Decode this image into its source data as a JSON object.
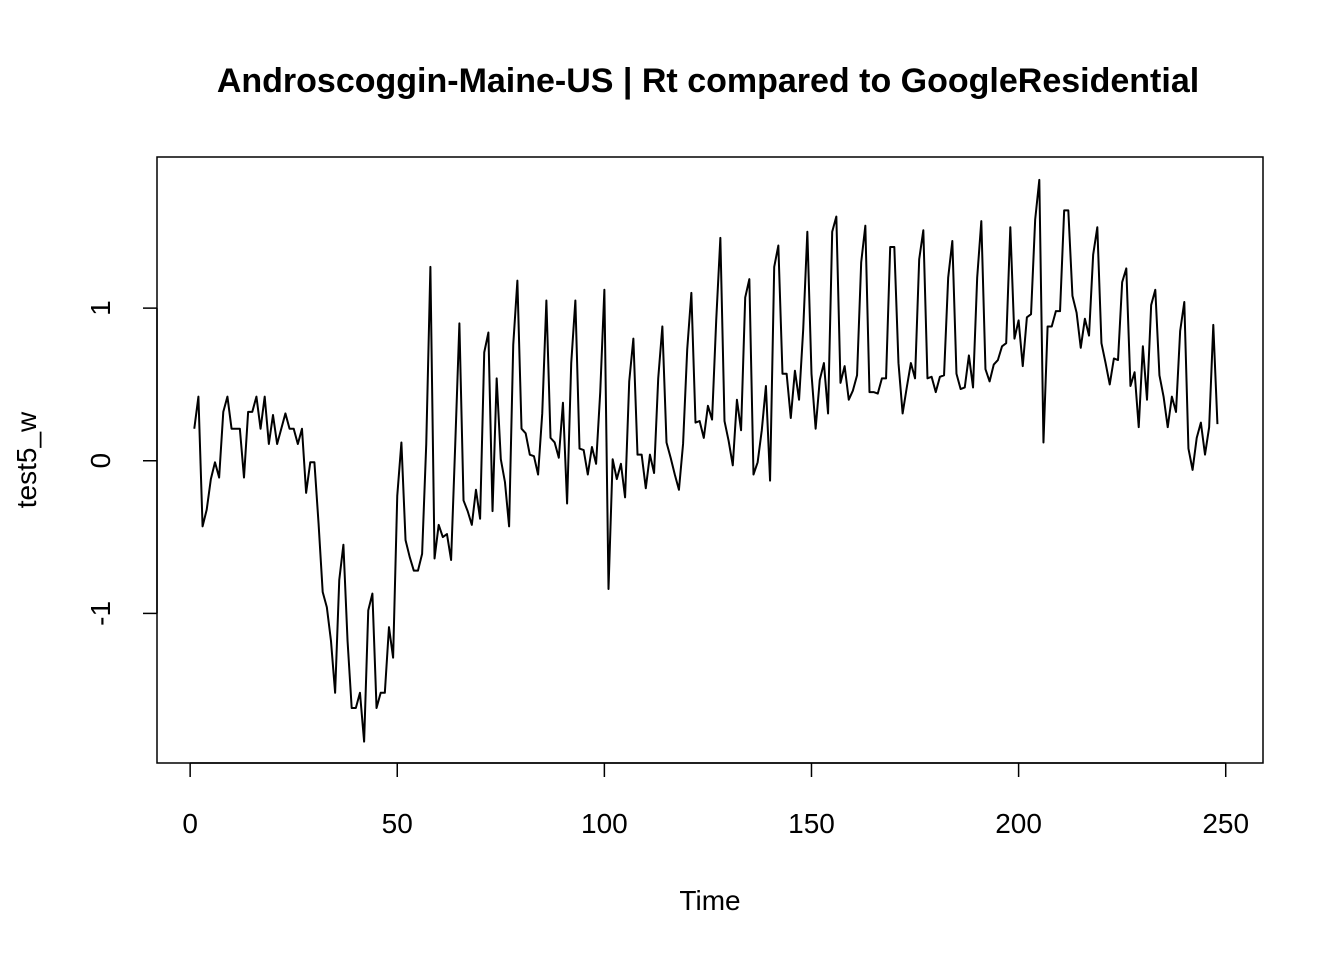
{
  "chart_data": {
    "type": "line",
    "title": "Androscoggin-Maine-US | Rt compared to GoogleResidential",
    "xlabel": "Time",
    "ylabel": "test5_w",
    "xlim": [
      -8,
      259
    ],
    "ylim": [
      -1.98,
      1.99
    ],
    "x_ticks": [
      0,
      50,
      100,
      150,
      200,
      250
    ],
    "x_tick_labels": [
      "0",
      "50",
      "100",
      "150",
      "200",
      "250"
    ],
    "y_ticks": [
      -1,
      0,
      1
    ],
    "y_tick_labels": [
      "-1",
      "0",
      "1"
    ],
    "grid": false,
    "legend": "none",
    "colors": {
      "line": "#000000",
      "frame": "#000000",
      "background": "#ffffff"
    },
    "x_start": 1,
    "values": [
      0.21,
      0.42,
      -0.43,
      -0.32,
      -0.12,
      -0.01,
      -0.11,
      0.32,
      0.42,
      0.21,
      0.21,
      0.21,
      -0.11,
      0.32,
      0.32,
      0.42,
      0.21,
      0.42,
      0.11,
      0.3,
      0.11,
      0.21,
      0.31,
      0.21,
      0.21,
      0.11,
      0.21,
      -0.21,
      -0.01,
      -0.01,
      -0.41,
      -0.86,
      -0.96,
      -1.18,
      -1.52,
      -0.78,
      -0.55,
      -1.18,
      -1.62,
      -1.62,
      -1.52,
      -1.84,
      -0.98,
      -0.87,
      -1.62,
      -1.52,
      -1.52,
      -1.09,
      -1.29,
      -0.23,
      0.12,
      -0.52,
      -0.63,
      -0.72,
      -0.72,
      -0.61,
      0.11,
      1.27,
      -0.64,
      -0.42,
      -0.5,
      -0.48,
      -0.65,
      0.11,
      0.9,
      -0.26,
      -0.33,
      -0.42,
      -0.19,
      -0.38,
      0.71,
      0.84,
      -0.33,
      0.54,
      0.01,
      -0.14,
      -0.43,
      0.76,
      1.18,
      0.21,
      0.18,
      0.04,
      0.03,
      -0.09,
      0.31,
      1.05,
      0.15,
      0.12,
      0.02,
      0.38,
      -0.28,
      0.64,
      1.05,
      0.08,
      0.07,
      -0.09,
      0.09,
      -0.02,
      0.45,
      1.12,
      -0.84,
      0.01,
      -0.12,
      -0.02,
      -0.24,
      0.52,
      0.8,
      0.04,
      0.04,
      -0.18,
      0.04,
      -0.08,
      0.54,
      0.88,
      0.12,
      0.02,
      -0.09,
      -0.19,
      0.11,
      0.73,
      1.1,
      0.25,
      0.26,
      0.15,
      0.36,
      0.27,
      0.92,
      1.46,
      0.26,
      0.13,
      -0.03,
      0.4,
      0.2,
      1.07,
      1.19,
      -0.09,
      -0.01,
      0.2,
      0.49,
      -0.13,
      1.27,
      1.41,
      0.57,
      0.57,
      0.28,
      0.59,
      0.4,
      0.86,
      1.5,
      0.57,
      0.21,
      0.53,
      0.64,
      0.31,
      1.5,
      1.6,
      0.51,
      0.62,
      0.4,
      0.46,
      0.56,
      1.3,
      1.54,
      0.45,
      0.45,
      0.44,
      0.54,
      0.54,
      1.4,
      1.4,
      0.64,
      0.31,
      0.48,
      0.64,
      0.54,
      1.32,
      1.51,
      0.54,
      0.55,
      0.45,
      0.55,
      0.56,
      1.2,
      1.44,
      0.57,
      0.47,
      0.48,
      0.69,
      0.48,
      1.2,
      1.57,
      0.6,
      0.52,
      0.63,
      0.66,
      0.75,
      0.77,
      1.53,
      0.8,
      0.92,
      0.62,
      0.94,
      0.96,
      1.58,
      1.84,
      0.12,
      0.88,
      0.88,
      0.98,
      0.98,
      1.64,
      1.64,
      1.08,
      0.97,
      0.74,
      0.93,
      0.82,
      1.35,
      1.53,
      0.77,
      0.64,
      0.5,
      0.67,
      0.66,
      1.17,
      1.26,
      0.49,
      0.58,
      0.22,
      0.75,
      0.4,
      1.02,
      1.12,
      0.56,
      0.42,
      0.22,
      0.42,
      0.32,
      0.85,
      1.04,
      0.08,
      -0.06,
      0.15,
      0.25,
      0.04,
      0.22,
      0.89,
      0.24
    ]
  }
}
